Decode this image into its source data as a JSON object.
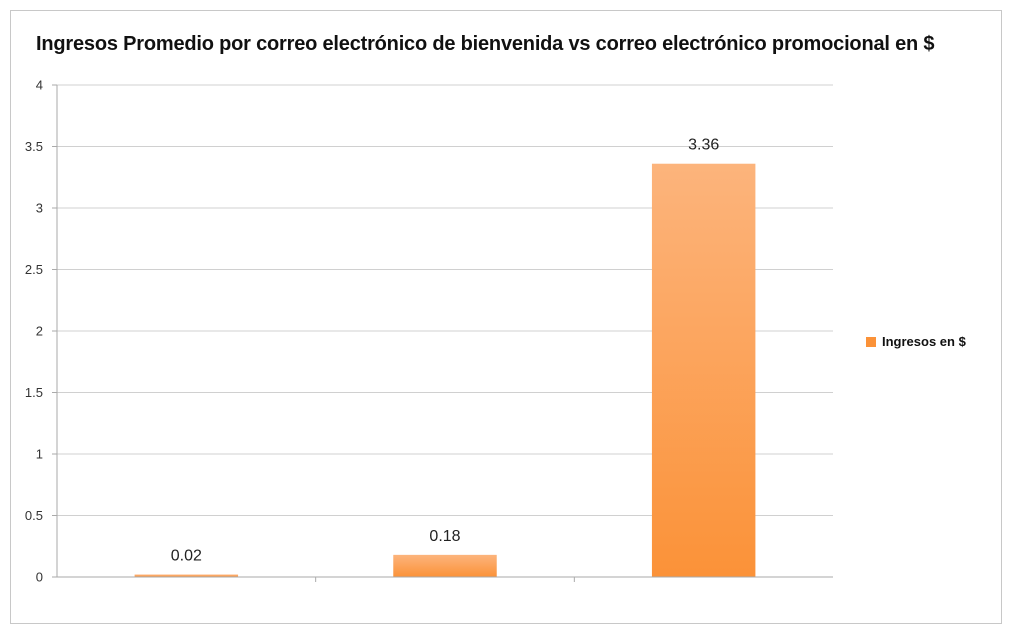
{
  "chart_data": {
    "type": "bar",
    "title": "Ingresos Promedio por correo electrónico de bienvenida vs correo electrónico promocional en $",
    "xlabel": "",
    "ylabel": "",
    "categories": [
      "",
      "",
      ""
    ],
    "series": [
      {
        "name": "Ingresos en $",
        "values": [
          0.02,
          0.18,
          3.36
        ],
        "value_labels": [
          "0.02",
          "0.18",
          "3.36"
        ]
      }
    ],
    "ylim": [
      0,
      4
    ],
    "yticks": [
      0,
      0.5,
      1,
      1.5,
      2,
      2.5,
      3,
      3.5,
      4
    ],
    "ytick_labels": [
      "0",
      "0.5",
      "1",
      "1.5",
      "2",
      "2.5",
      "3",
      "3.5",
      "4"
    ],
    "grid": true,
    "legend_position": "right",
    "colors": {
      "bar_top": "#fcb47c",
      "bar_bottom": "#fb9238",
      "grid": "#d0d0d0",
      "axis": "#aaaaaa"
    }
  }
}
